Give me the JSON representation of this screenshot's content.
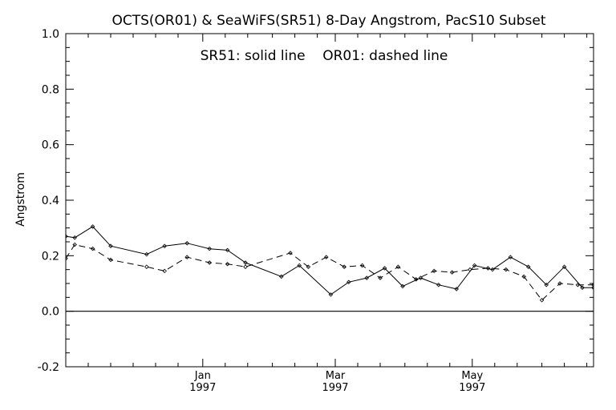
{
  "chart_data": {
    "type": "line",
    "title": "OCTS(OR01) & SeaWiFS(SR51) 8-Day Angstrom, PacS10 Subset",
    "subtitle": "SR51: solid line    OR01: dashed line",
    "xlabel": "",
    "ylabel": "Angstrom",
    "ylim": [
      -0.2,
      1.0
    ],
    "xlim": [
      "1996-11-01",
      "1997-06-24"
    ],
    "y_ticks": [
      "-0.2",
      "0.0",
      "0.2",
      "0.4",
      "0.6",
      "0.8",
      "1.0"
    ],
    "x_tick_labels": [
      {
        "date": "1997-01-01",
        "month": "Jan",
        "year": "1997"
      },
      {
        "date": "1997-03-01",
        "month": "Mar",
        "year": "1997"
      },
      {
        "date": "1997-05-01",
        "month": "May",
        "year": "1997"
      }
    ],
    "zero_line": 0.0,
    "grid": false,
    "series": [
      {
        "name": "SR51",
        "style": "solid",
        "x": [
          "1996-11-01",
          "1996-11-05",
          "1996-11-13",
          "1996-11-21",
          "1996-12-07",
          "1996-12-15",
          "1996-12-25",
          "1997-01-04",
          "1997-01-12",
          "1997-01-20",
          "1997-02-05",
          "1997-02-13",
          "1997-02-27",
          "1997-03-07",
          "1997-03-15",
          "1997-03-23",
          "1997-03-31",
          "1997-04-08",
          "1997-04-16",
          "1997-04-24",
          "1997-05-02",
          "1997-05-10",
          "1997-05-18",
          "1997-05-26",
          "1997-06-03",
          "1997-06-11",
          "1997-06-19",
          "1997-06-24"
        ],
        "values": [
          0.27,
          0.265,
          0.305,
          0.235,
          0.205,
          0.235,
          0.245,
          0.225,
          0.22,
          0.175,
          0.125,
          0.165,
          0.06,
          0.105,
          0.12,
          0.155,
          0.09,
          0.12,
          0.095,
          0.08,
          0.165,
          0.15,
          0.195,
          0.16,
          0.095,
          0.16,
          0.085,
          0.085
        ]
      },
      {
        "name": "OR01",
        "style": "dashed",
        "x": [
          "1996-11-01",
          "1996-11-05",
          "1996-11-13",
          "1996-11-21",
          "1996-12-07",
          "1996-12-15",
          "1996-12-25",
          "1997-01-04",
          "1997-01-12",
          "1997-01-20",
          "1997-02-09",
          "1997-02-17",
          "1997-02-25",
          "1997-03-05",
          "1997-03-13",
          "1997-03-21",
          "1997-03-29",
          "1997-04-06",
          "1997-04-14",
          "1997-04-22",
          "1997-04-30",
          "1997-05-08",
          "1997-05-16",
          "1997-05-24",
          "1997-06-01",
          "1997-06-09",
          "1997-06-17",
          "1997-06-24"
        ],
        "values": [
          0.19,
          0.24,
          0.225,
          0.185,
          0.16,
          0.145,
          0.195,
          0.175,
          0.17,
          0.16,
          0.21,
          0.16,
          0.195,
          0.16,
          0.165,
          0.12,
          0.16,
          0.115,
          0.145,
          0.14,
          0.15,
          0.155,
          0.15,
          0.125,
          0.04,
          0.1,
          0.095,
          0.095
        ]
      }
    ]
  }
}
